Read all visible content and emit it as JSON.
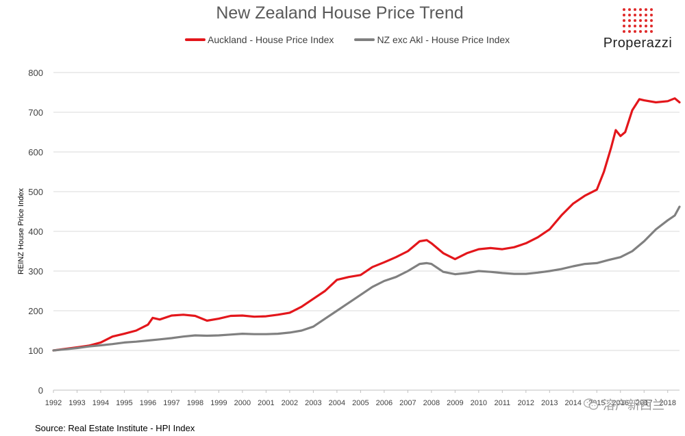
{
  "chart_data": {
    "type": "line",
    "title": "New Zealand House Price Trend",
    "xlabel": "",
    "ylabel": "REINZ House Price Index",
    "ylim": [
      0,
      800
    ],
    "yticks": [
      0,
      100,
      200,
      300,
      400,
      500,
      600,
      700,
      800
    ],
    "xlim": [
      1992,
      2018.5
    ],
    "xticks": [
      "1992",
      "1993",
      "1994",
      "1995",
      "1996",
      "1997",
      "1998",
      "1999",
      "2000",
      "2001",
      "2002",
      "2003",
      "2004",
      "2005",
      "2006",
      "2007",
      "2008",
      "2009",
      "2010",
      "2011",
      "2012",
      "2013",
      "2014",
      "2015",
      "2016",
      "2017",
      "2018"
    ],
    "grid": true,
    "legend_position": "top",
    "series": [
      {
        "name": "Auckland - House Price Index",
        "color": "#e3161b",
        "x": [
          1992.0,
          1992.5,
          1993.0,
          1993.5,
          1994.0,
          1994.5,
          1995.0,
          1995.5,
          1996.0,
          1996.2,
          1996.5,
          1997.0,
          1997.5,
          1998.0,
          1998.5,
          1999.0,
          1999.5,
          2000.0,
          2000.5,
          2001.0,
          2001.5,
          2002.0,
          2002.5,
          2003.0,
          2003.5,
          2004.0,
          2004.5,
          2005.0,
          2005.5,
          2006.0,
          2006.5,
          2007.0,
          2007.5,
          2007.8,
          2008.0,
          2008.5,
          2009.0,
          2009.5,
          2010.0,
          2010.5,
          2011.0,
          2011.5,
          2012.0,
          2012.5,
          2013.0,
          2013.5,
          2014.0,
          2014.5,
          2015.0,
          2015.3,
          2015.6,
          2015.8,
          2016.0,
          2016.2,
          2016.5,
          2016.8,
          2017.0,
          2017.5,
          2018.0,
          2018.3,
          2018.5
        ],
        "values": [
          100,
          104,
          108,
          112,
          120,
          135,
          142,
          150,
          165,
          182,
          178,
          188,
          190,
          187,
          175,
          180,
          187,
          188,
          185,
          186,
          190,
          195,
          210,
          230,
          250,
          278,
          285,
          290,
          310,
          322,
          335,
          350,
          375,
          378,
          370,
          345,
          330,
          345,
          355,
          358,
          355,
          360,
          370,
          385,
          405,
          440,
          470,
          490,
          505,
          550,
          610,
          655,
          640,
          650,
          705,
          733,
          730,
          725,
          728,
          735,
          725
        ]
      },
      {
        "name": "NZ exc Akl - House Price Index",
        "color": "#808080",
        "x": [
          1992.0,
          1992.5,
          1993.0,
          1993.5,
          1994.0,
          1994.5,
          1995.0,
          1995.5,
          1996.0,
          1996.5,
          1997.0,
          1997.5,
          1998.0,
          1998.5,
          1999.0,
          1999.5,
          2000.0,
          2000.5,
          2001.0,
          2001.5,
          2002.0,
          2002.5,
          2003.0,
          2003.5,
          2004.0,
          2004.5,
          2005.0,
          2005.5,
          2006.0,
          2006.5,
          2007.0,
          2007.5,
          2007.8,
          2008.0,
          2008.5,
          2009.0,
          2009.5,
          2010.0,
          2010.5,
          2011.0,
          2011.5,
          2012.0,
          2012.5,
          2013.0,
          2013.5,
          2014.0,
          2014.5,
          2015.0,
          2015.5,
          2016.0,
          2016.5,
          2017.0,
          2017.5,
          2018.0,
          2018.3,
          2018.5
        ],
        "values": [
          100,
          103,
          106,
          110,
          113,
          116,
          120,
          122,
          125,
          128,
          131,
          135,
          138,
          137,
          138,
          140,
          142,
          141,
          141,
          142,
          145,
          150,
          160,
          180,
          200,
          220,
          240,
          260,
          275,
          285,
          300,
          318,
          320,
          318,
          298,
          292,
          295,
          300,
          298,
          295,
          293,
          293,
          296,
          300,
          305,
          312,
          318,
          320,
          328,
          335,
          350,
          375,
          405,
          428,
          440,
          462
        ]
      }
    ]
  },
  "logo": {
    "text": "Properazzi",
    "color": "#e02a2a"
  },
  "source": "Source: Real Estate Institute - HPI Index",
  "watermark": {
    "text": "溶产新西兰",
    "icon": "wechat-icon"
  }
}
